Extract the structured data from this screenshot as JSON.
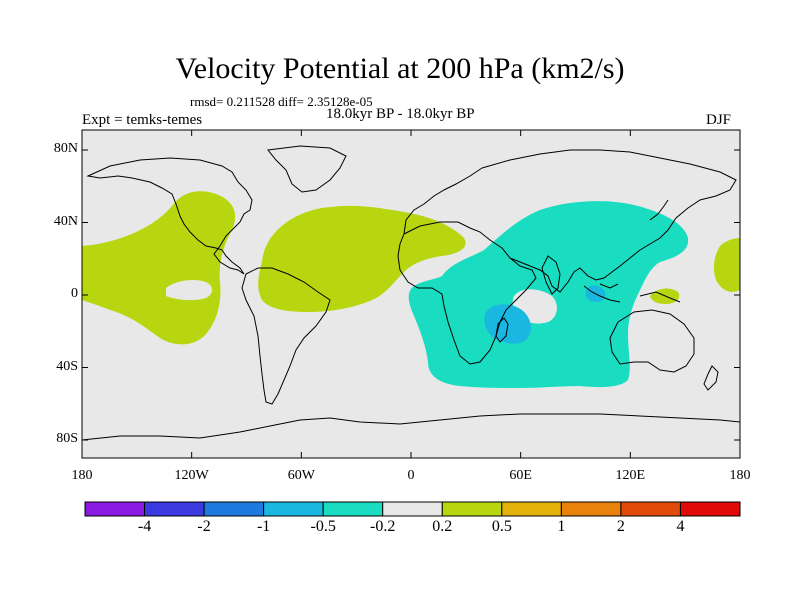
{
  "title": "Velocity Potential at 200 hPa (km2/s)",
  "stats": "rmsd= 0.211528 diff= 2.35128e-05",
  "experiment": "Expt = temks-temes",
  "period": "18.0kyr BP - 18.0kyr BP",
  "season": "DJF",
  "map": {
    "background_color": "#e8e8e8",
    "lat_ticks": [
      "80N",
      "40N",
      "0",
      "40S",
      "80S"
    ],
    "lon_ticks": [
      "180",
      "120W",
      "60W",
      "0",
      "60E",
      "120E",
      "180"
    ]
  },
  "colorbar": {
    "colors": [
      "#8a1ae0",
      "#3a3ae0",
      "#1f7ae0",
      "#1ab8e0",
      "#19dcc0",
      "#e8e8e8",
      "#b8d60f",
      "#e3b20a",
      "#e8820a",
      "#e04a0a",
      "#e00a0a"
    ],
    "labels": [
      "-4",
      "-2",
      "-1",
      "-0.5",
      "-0.2",
      "0.2",
      "0.5",
      "1",
      "2",
      "4"
    ]
  }
}
